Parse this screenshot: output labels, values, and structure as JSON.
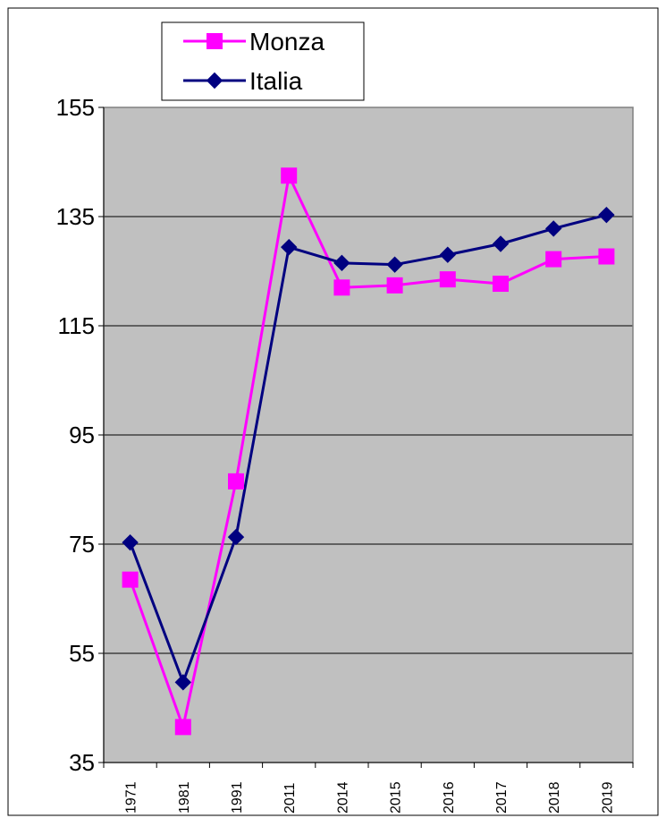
{
  "chart_data": {
    "type": "line",
    "categories": [
      "1971",
      "1981",
      "1991",
      "2011",
      "2014",
      "2015",
      "2016",
      "2017",
      "2018",
      "2019"
    ],
    "series": [
      {
        "name": "Monza",
        "color": "#ff00ff",
        "marker": "square",
        "values": [
          68.5,
          41.5,
          86.5,
          142.5,
          122.0,
          122.4,
          123.5,
          122.7,
          127.2,
          127.7
        ]
      },
      {
        "name": "Italia",
        "color": "#000080",
        "marker": "diamond",
        "values": [
          75.3,
          49.7,
          76.3,
          129.4,
          126.5,
          126.2,
          128.0,
          130.0,
          132.8,
          135.3
        ]
      }
    ],
    "ylim": [
      35,
      155
    ],
    "yticks": [
      35,
      55,
      75,
      95,
      115,
      135,
      155
    ],
    "grid": true,
    "plot_background": "#c0c0c0",
    "legend_position": "top-left",
    "title": "",
    "xlabel": "",
    "ylabel": ""
  }
}
